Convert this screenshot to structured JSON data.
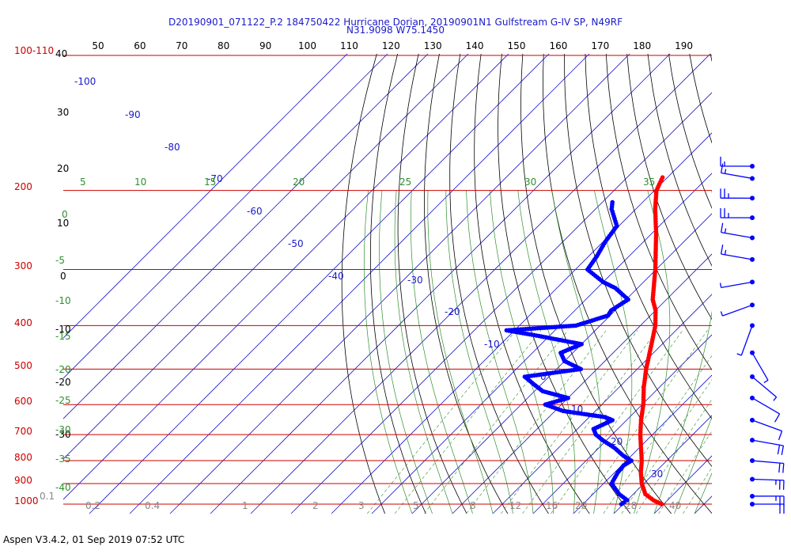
{
  "header": {
    "title_line1": "D20190901_071122_P.2 184750422 Hurricane Dorian, 20190901N1 Gulfstream G-IV SP, N49RF",
    "title_line2": "N31.9098 W75.1450"
  },
  "footer": {
    "text": "Aspen V3.4.2, 01 Sep 2019  07:52 UTC"
  },
  "chart_data": {
    "type": "skew-t",
    "colors": {
      "isobar": "#cc0000",
      "isotherm": "#1a1acc",
      "dry_adiabat": "#000000",
      "moist_adiabat": "#2f8f2f",
      "mixing_ratio": "#2f8f2f",
      "temperature_trace": "#ff0000",
      "dewpoint_trace": "#0000ff",
      "wind_barb": "#0000ff"
    },
    "pressure_labels": [
      "100-110",
      "200",
      "300",
      "400",
      "500",
      "600",
      "700",
      "800",
      "900",
      "1000"
    ],
    "top_axis_labels": [
      "50",
      "60",
      "70",
      "80",
      "90",
      "100",
      "110",
      "120",
      "130",
      "140",
      "150",
      "160",
      "170",
      "180",
      "190"
    ],
    "left_axis_labels": [
      "40",
      "30",
      "20",
      "10",
      "0",
      "-10",
      "-20",
      "-30"
    ],
    "isotherm_labels": [
      "-100",
      "-90",
      "-80",
      "-70",
      "-60",
      "-50",
      "-40",
      "-30",
      "-20",
      "-10",
      "0",
      "10",
      "20",
      "30"
    ],
    "dry_adiabat_labels": [
      "0",
      "-5",
      "-10",
      "-15",
      "-20",
      "-25",
      "-30",
      "-35",
      "-40"
    ],
    "moist_adiabat_labels": [
      "5",
      "10",
      "15",
      "20",
      "25",
      "30",
      "35"
    ],
    "mixing_ratio_labels": [
      "0.1",
      "0.2",
      "0.4",
      "1",
      "2",
      "3",
      "5",
      "8",
      "12",
      "16",
      "20",
      "28",
      "40"
    ],
    "temperature_profile": [
      {
        "p": 1000,
        "t": 29.5
      },
      {
        "p": 980,
        "t": 26.5
      },
      {
        "p": 950,
        "t": 23.0
      },
      {
        "p": 900,
        "t": 19.5
      },
      {
        "p": 850,
        "t": 16.5
      },
      {
        "p": 800,
        "t": 13.8
      },
      {
        "p": 750,
        "t": 10.5
      },
      {
        "p": 700,
        "t": 7.0
      },
      {
        "p": 650,
        "t": 3.6
      },
      {
        "p": 600,
        "t": 0.3
      },
      {
        "p": 550,
        "t": -3.8
      },
      {
        "p": 500,
        "t": -7.8
      },
      {
        "p": 450,
        "t": -11.8
      },
      {
        "p": 400,
        "t": -16.3
      },
      {
        "p": 370,
        "t": -20.0
      },
      {
        "p": 350,
        "t": -23.4
      },
      {
        "p": 300,
        "t": -30.2
      },
      {
        "p": 250,
        "t": -38.8
      },
      {
        "p": 220,
        "t": -45.2
      },
      {
        "p": 200,
        "t": -49.5
      },
      {
        "p": 185,
        "t": -51.5
      }
    ],
    "dewpoint_profile": [
      {
        "p": 1000,
        "t": 19.5
      },
      {
        "p": 980,
        "t": 20.0
      },
      {
        "p": 950,
        "t": 16.5
      },
      {
        "p": 900,
        "t": 12.0
      },
      {
        "p": 850,
        "t": 10.8
      },
      {
        "p": 820,
        "t": 10.5
      },
      {
        "p": 800,
        "t": 11.2
      },
      {
        "p": 780,
        "t": 8.0
      },
      {
        "p": 750,
        "t": 4.0
      },
      {
        "p": 720,
        "t": -1.0
      },
      {
        "p": 700,
        "t": -4.0
      },
      {
        "p": 680,
        "t": -6.0
      },
      {
        "p": 650,
        "t": -3.5
      },
      {
        "p": 640,
        "t": -6.0
      },
      {
        "p": 620,
        "t": -18.0
      },
      {
        "p": 600,
        "t": -24.0
      },
      {
        "p": 580,
        "t": -20.0
      },
      {
        "p": 560,
        "t": -28.0
      },
      {
        "p": 540,
        "t": -32.0
      },
      {
        "p": 520,
        "t": -36.0
      },
      {
        "p": 500,
        "t": -24.0
      },
      {
        "p": 480,
        "t": -30.0
      },
      {
        "p": 460,
        "t": -33.0
      },
      {
        "p": 440,
        "t": -30.0
      },
      {
        "p": 420,
        "t": -44.0
      },
      {
        "p": 410,
        "t": -52.0
      },
      {
        "p": 400,
        "t": -36.0
      },
      {
        "p": 380,
        "t": -30.5
      },
      {
        "p": 370,
        "t": -31.0
      },
      {
        "p": 350,
        "t": -29.5
      },
      {
        "p": 330,
        "t": -35.5
      },
      {
        "p": 320,
        "t": -40.0
      },
      {
        "p": 300,
        "t": -47.0
      },
      {
        "p": 280,
        "t": -48.0
      },
      {
        "p": 260,
        "t": -49.5
      },
      {
        "p": 240,
        "t": -50.5
      },
      {
        "p": 220,
        "t": -56.0
      },
      {
        "p": 210,
        "t": -58.0
      }
    ],
    "wind_barbs": [
      {
        "p": 170,
        "speed": 15,
        "dir": 270
      },
      {
        "p": 188,
        "speed": 15,
        "dir": 280
      },
      {
        "p": 208,
        "speed": 25,
        "dir": 270
      },
      {
        "p": 230,
        "speed": 25,
        "dir": 270
      },
      {
        "p": 255,
        "speed": 15,
        "dir": 280
      },
      {
        "p": 285,
        "speed": 15,
        "dir": 280
      },
      {
        "p": 320,
        "speed": 5,
        "dir": 260
      },
      {
        "p": 360,
        "speed": 5,
        "dir": 250
      },
      {
        "p": 400,
        "speed": 5,
        "dir": 200
      },
      {
        "p": 460,
        "speed": 5,
        "dir": 150
      },
      {
        "p": 520,
        "speed": 5,
        "dir": 130
      },
      {
        "p": 580,
        "speed": 10,
        "dir": 120
      },
      {
        "p": 650,
        "speed": 10,
        "dir": 110
      },
      {
        "p": 720,
        "speed": 20,
        "dir": 100
      },
      {
        "p": 800,
        "speed": 20,
        "dir": 95
      },
      {
        "p": 880,
        "speed": 25,
        "dir": 92
      },
      {
        "p": 960,
        "speed": 25,
        "dir": 90
      },
      {
        "p": 1000,
        "speed": 20,
        "dir": 90
      }
    ]
  }
}
